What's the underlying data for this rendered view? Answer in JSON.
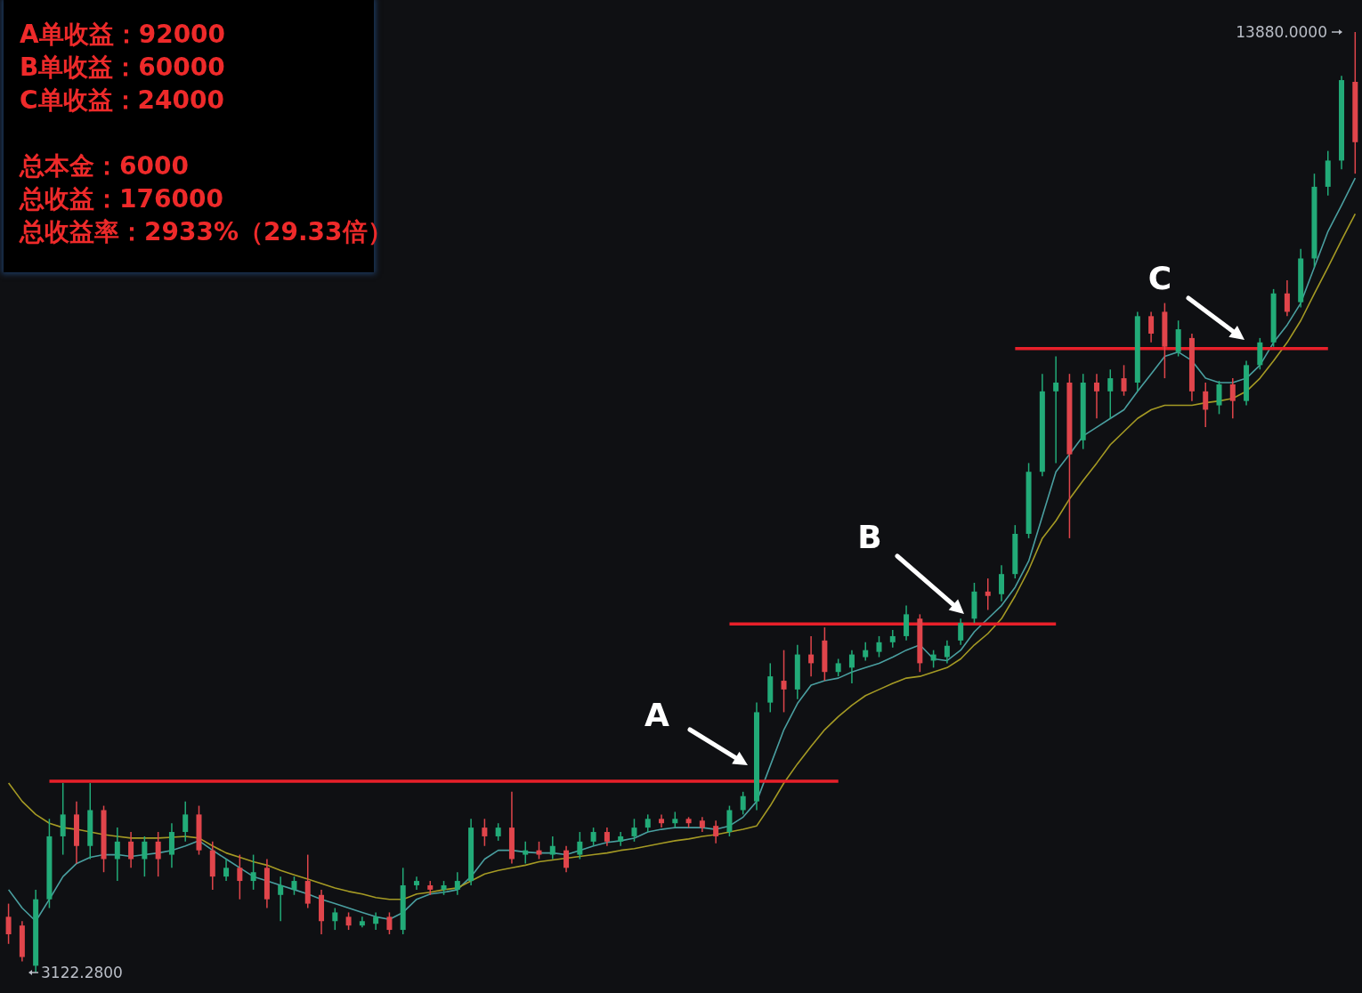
{
  "chart_data": {
    "type": "candlestick",
    "categories": [
      null,
      null,
      null,
      null,
      null,
      null,
      null,
      null,
      null,
      null,
      null,
      null,
      null,
      null,
      null,
      null,
      null,
      null,
      null,
      null,
      null,
      null,
      null,
      null,
      null,
      null,
      null,
      null,
      null,
      null,
      null,
      null,
      null,
      null,
      null,
      null,
      null,
      null,
      null,
      null,
      null,
      null,
      null,
      null,
      null,
      null,
      null,
      null,
      null,
      null,
      null,
      null,
      null,
      null,
      null,
      null,
      null,
      null,
      null,
      null,
      null,
      null,
      null,
      null,
      null,
      null,
      null,
      null,
      null,
      null,
      null,
      null,
      null,
      null,
      null,
      null,
      null,
      null,
      null,
      null,
      null,
      null,
      null,
      null,
      null,
      null,
      null,
      null,
      null,
      null,
      null,
      null,
      null,
      null,
      null,
      null,
      null,
      null,
      null,
      null
    ],
    "ohlc": [
      [
        3760,
        3910,
        3450,
        3560
      ],
      [
        3660,
        3710,
        3250,
        3300
      ],
      [
        3200,
        4070,
        3122.28,
        3960
      ],
      [
        3960,
        4880,
        3860,
        4680
      ],
      [
        4680,
        5290,
        4470,
        4930
      ],
      [
        4930,
        5080,
        4370,
        4570
      ],
      [
        4570,
        5290,
        4420,
        4980
      ],
      [
        4980,
        5030,
        4270,
        4420
      ],
      [
        4420,
        4780,
        4170,
        4620
      ],
      [
        4620,
        4730,
        4320,
        4420
      ],
      [
        4420,
        4680,
        4220,
        4620
      ],
      [
        4620,
        4730,
        4220,
        4420
      ],
      [
        4470,
        4830,
        4320,
        4730
      ],
      [
        4730,
        5080,
        4620,
        4930
      ],
      [
        4930,
        5030,
        4470,
        4520
      ],
      [
        4520,
        4620,
        4070,
        4220
      ],
      [
        4220,
        4420,
        4170,
        4320
      ],
      [
        4320,
        4470,
        3960,
        4170
      ],
      [
        4170,
        4470,
        4070,
        4270
      ],
      [
        4320,
        4420,
        3860,
        3960
      ],
      [
        4010,
        4220,
        3710,
        4120
      ],
      [
        4070,
        4220,
        4010,
        4170
      ],
      [
        4170,
        4470,
        3860,
        3910
      ],
      [
        4010,
        4070,
        3560,
        3710
      ],
      [
        3710,
        3860,
        3610,
        3810
      ],
      [
        3760,
        3810,
        3610,
        3660
      ],
      [
        3660,
        3760,
        3640,
        3710
      ],
      [
        3680,
        3810,
        3610,
        3760
      ],
      [
        3760,
        3810,
        3560,
        3610
      ],
      [
        3610,
        4320,
        3560,
        4120
      ],
      [
        4120,
        4220,
        4070,
        4170
      ],
      [
        4120,
        4170,
        4010,
        4070
      ],
      [
        4070,
        4170,
        4010,
        4120
      ],
      [
        4070,
        4270,
        4010,
        4170
      ],
      [
        4170,
        4880,
        4120,
        4780
      ],
      [
        4780,
        4880,
        4570,
        4680
      ],
      [
        4680,
        4830,
        4630,
        4780
      ],
      [
        4780,
        5190,
        4370,
        4420
      ],
      [
        4470,
        4620,
        4370,
        4520
      ],
      [
        4520,
        4620,
        4420,
        4470
      ],
      [
        4470,
        4680,
        4420,
        4570
      ],
      [
        4520,
        4570,
        4270,
        4320
      ],
      [
        4470,
        4730,
        4420,
        4620
      ],
      [
        4620,
        4780,
        4570,
        4730
      ],
      [
        4730,
        4780,
        4570,
        4620
      ],
      [
        4620,
        4730,
        4570,
        4680
      ],
      [
        4680,
        4880,
        4620,
        4780
      ],
      [
        4780,
        4930,
        4730,
        4880
      ],
      [
        4880,
        4930,
        4780,
        4830
      ],
      [
        4830,
        4960,
        4780,
        4880
      ],
      [
        4880,
        4900,
        4780,
        4830
      ],
      [
        4860,
        4900,
        4730,
        4780
      ],
      [
        4800,
        4860,
        4600,
        4680
      ],
      [
        4730,
        5030,
        4680,
        4980
      ],
      [
        4980,
        5190,
        4930,
        5140
      ],
      [
        5080,
        6210,
        4980,
        6100
      ],
      [
        6210,
        6660,
        6100,
        6510
      ],
      [
        6460,
        6810,
        6100,
        6360
      ],
      [
        6360,
        6870,
        6250,
        6760
      ],
      [
        6760,
        6970,
        6510,
        6660
      ],
      [
        6920,
        7070,
        6460,
        6560
      ],
      [
        6560,
        6710,
        6510,
        6660
      ],
      [
        6610,
        6810,
        6430,
        6760
      ],
      [
        6730,
        6900,
        6690,
        6810
      ],
      [
        6790,
        6970,
        6730,
        6900
      ],
      [
        6900,
        7040,
        6840,
        6970
      ],
      [
        6970,
        7320,
        6920,
        7220
      ],
      [
        7170,
        7220,
        6560,
        6660
      ],
      [
        6690,
        6810,
        6610,
        6760
      ],
      [
        6730,
        6920,
        6660,
        6860
      ],
      [
        6920,
        7170,
        6870,
        7120
      ],
      [
        7170,
        7580,
        7120,
        7480
      ],
      [
        7480,
        7630,
        7270,
        7430
      ],
      [
        7450,
        7780,
        7370,
        7680
      ],
      [
        7680,
        8240,
        7630,
        8140
      ],
      [
        8140,
        8950,
        8090,
        8850
      ],
      [
        8850,
        9970,
        8800,
        9770
      ],
      [
        9770,
        10170,
        8950,
        9870
      ],
      [
        9870,
        9970,
        8090,
        9050
      ],
      [
        9210,
        9970,
        9110,
        9870
      ],
      [
        9870,
        9970,
        9460,
        9770
      ],
      [
        9770,
        10020,
        9460,
        9920
      ],
      [
        9920,
        10070,
        9720,
        9770
      ],
      [
        9870,
        10680,
        9770,
        10630
      ],
      [
        10630,
        10680,
        10330,
        10430
      ],
      [
        10680,
        10780,
        9920,
        10280
      ],
      [
        10220,
        10580,
        10170,
        10480
      ],
      [
        10380,
        10430,
        9660,
        9770
      ],
      [
        9770,
        9870,
        9360,
        9560
      ],
      [
        9610,
        9890,
        9510,
        9850
      ],
      [
        9850,
        9920,
        9460,
        9660
      ],
      [
        9660,
        10120,
        9610,
        10070
      ],
      [
        10070,
        10380,
        10020,
        10330
      ],
      [
        10330,
        10940,
        10280,
        10890
      ],
      [
        10890,
        11040,
        10630,
        10680
      ],
      [
        10790,
        11400,
        10730,
        11290
      ],
      [
        11290,
        12260,
        11190,
        12110
      ],
      [
        12110,
        12520,
        12010,
        12410
      ],
      [
        12410,
        13380,
        12310,
        13330
      ],
      [
        13310,
        13880,
        12260,
        12620
      ]
    ],
    "series": [
      {
        "type": "line",
        "color": "#4a9fa0",
        "values": [
          4070,
          3860,
          3710,
          3960,
          4220,
          4370,
          4440,
          4470,
          4470,
          4450,
          4470,
          4490,
          4520,
          4570,
          4630,
          4520,
          4420,
          4320,
          4220,
          4170,
          4120,
          4070,
          4020,
          3960,
          3910,
          3860,
          3810,
          3760,
          3730,
          3810,
          3960,
          4020,
          4040,
          4070,
          4220,
          4420,
          4520,
          4520,
          4500,
          4490,
          4490,
          4470,
          4520,
          4570,
          4610,
          4630,
          4660,
          4730,
          4760,
          4780,
          4780,
          4780,
          4760,
          4800,
          4900,
          5080,
          5490,
          5900,
          6200,
          6410,
          6460,
          6490,
          6560,
          6610,
          6660,
          6730,
          6810,
          6870,
          6710,
          6690,
          6810,
          7020,
          7170,
          7320,
          7530,
          7830,
          8340,
          8850,
          9050,
          9260,
          9360,
          9460,
          9560,
          9770,
          9970,
          10170,
          10220,
          10120,
          9920,
          9870,
          9870,
          9920,
          10070,
          10330,
          10530,
          10780,
          11190,
          11600,
          11900,
          12210
        ]
      },
      {
        "type": "line",
        "color": "#a59a24",
        "values": [
          5290,
          5080,
          4930,
          4830,
          4780,
          4760,
          4730,
          4700,
          4680,
          4660,
          4660,
          4660,
          4670,
          4680,
          4660,
          4570,
          4490,
          4440,
          4390,
          4350,
          4290,
          4240,
          4190,
          4140,
          4090,
          4050,
          4020,
          3980,
          3960,
          3960,
          4020,
          4040,
          4070,
          4090,
          4170,
          4250,
          4290,
          4320,
          4350,
          4390,
          4410,
          4430,
          4450,
          4470,
          4490,
          4520,
          4540,
          4570,
          4600,
          4630,
          4650,
          4680,
          4700,
          4730,
          4760,
          4800,
          5030,
          5290,
          5510,
          5710,
          5900,
          6050,
          6180,
          6290,
          6360,
          6430,
          6490,
          6510,
          6560,
          6610,
          6710,
          6870,
          7000,
          7170,
          7430,
          7730,
          8090,
          8290,
          8540,
          8750,
          8950,
          9160,
          9310,
          9460,
          9560,
          9610,
          9610,
          9610,
          9640,
          9660,
          9690,
          9770,
          9920,
          10120,
          10330,
          10580,
          10890,
          11190,
          11500,
          11800
        ]
      },
      {
        "type": "line",
        "color": "#e8202a",
        "values": [
          null,
          null,
          null,
          5310,
          5310,
          5310,
          5310,
          5310,
          5310,
          5310,
          5310,
          5310,
          5310,
          5310,
          5310,
          5310,
          5310,
          5310,
          5310,
          5310,
          5310,
          5310,
          5310,
          5310,
          5310,
          5310,
          5310,
          5310,
          5310,
          5310,
          5310,
          5310,
          5310,
          5310,
          5310,
          5310,
          5310,
          5310,
          5310,
          5310,
          5310,
          5310,
          5310,
          5310,
          5310,
          5310,
          5310,
          5310,
          5310,
          5310,
          5310,
          5310,
          5310,
          5310,
          5310,
          5310,
          5310,
          5310,
          5310,
          5310,
          5310,
          5310,
          null,
          null,
          null,
          null,
          null,
          null,
          null,
          null,
          null,
          null,
          null,
          null,
          null,
          null,
          null,
          null,
          null,
          null,
          null,
          null,
          null,
          null,
          null,
          null,
          null,
          null,
          null,
          null,
          null,
          null,
          null,
          null,
          null,
          null,
          null,
          null,
          null,
          null
        ]
      },
      {
        "type": "line",
        "color": "#e8202a",
        "values": [
          null,
          null,
          null,
          null,
          null,
          null,
          null,
          null,
          null,
          null,
          null,
          null,
          null,
          null,
          null,
          null,
          null,
          null,
          null,
          null,
          null,
          null,
          null,
          null,
          null,
          null,
          null,
          null,
          null,
          null,
          null,
          null,
          null,
          null,
          null,
          null,
          null,
          null,
          null,
          null,
          null,
          null,
          null,
          null,
          null,
          null,
          null,
          null,
          null,
          null,
          null,
          null,
          null,
          7110,
          7110,
          7110,
          7110,
          7110,
          7110,
          7110,
          7110,
          7110,
          7110,
          7110,
          7110,
          7110,
          7110,
          7110,
          7110,
          7110,
          7110,
          7110,
          7110,
          7110,
          7110,
          7110,
          7110,
          7110,
          null,
          null,
          null,
          null,
          null,
          null,
          null,
          null,
          null,
          null,
          null,
          null,
          null,
          null,
          null,
          null,
          null,
          null,
          null,
          null,
          null,
          null
        ]
      },
      {
        "type": "line",
        "color": "#e8202a",
        "values": [
          null,
          null,
          null,
          null,
          null,
          null,
          null,
          null,
          null,
          null,
          null,
          null,
          null,
          null,
          null,
          null,
          null,
          null,
          null,
          null,
          null,
          null,
          null,
          null,
          null,
          null,
          null,
          null,
          null,
          null,
          null,
          null,
          null,
          null,
          null,
          null,
          null,
          null,
          null,
          null,
          null,
          null,
          null,
          null,
          null,
          null,
          null,
          null,
          null,
          null,
          null,
          null,
          null,
          null,
          null,
          null,
          null,
          null,
          null,
          null,
          null,
          null,
          null,
          null,
          null,
          null,
          null,
          null,
          null,
          null,
          null,
          null,
          null,
          null,
          10260,
          10260,
          10260,
          10260,
          10260,
          10260,
          10260,
          10260,
          10260,
          10260,
          10260,
          10260,
          10260,
          10260,
          10260,
          10260,
          10260,
          10260,
          10260,
          10260,
          10260,
          10260,
          10260,
          10260,
          null,
          null
        ]
      }
    ],
    "annotations": [
      "A单收益：92000",
      "B单收益：60000",
      "C单收益：24000",
      "总本金：6000",
      "总收益：176000",
      "总收益率：2933%（29.33倍）",
      "A",
      "B",
      "C",
      "13880.0000",
      "3122.2800"
    ]
  }
}
